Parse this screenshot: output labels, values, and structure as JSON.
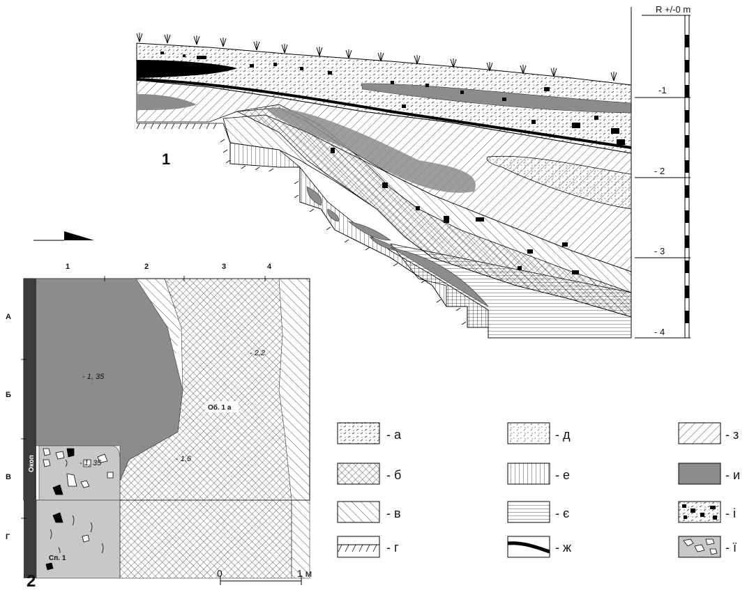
{
  "figure": {
    "section_number": "1",
    "plan_number": "2",
    "elevation_label": "R +/-0 m",
    "depth_ticks": [
      "-1",
      "- 2",
      "- 3",
      "- 4"
    ],
    "grid_columns": [
      "1",
      "2",
      "3",
      "4"
    ],
    "grid_rows": [
      "А",
      "Б",
      "В",
      "Г"
    ],
    "trench_label": "Окоп",
    "object_label": "Об. 1 а",
    "cluster_label": "Сп. 1",
    "plan_depths": [
      "- 1, 35",
      "- 2,2",
      "- 1,6",
      "- 1, 35"
    ],
    "scale": {
      "zero": "0",
      "one": "1 м"
    }
  },
  "legend": [
    {
      "key": "a",
      "label": "- а",
      "pattern": "dashes"
    },
    {
      "key": "b",
      "label": "- б",
      "pattern": "crosshatch"
    },
    {
      "key": "v",
      "label": "- в",
      "pattern": "diagonal-back"
    },
    {
      "key": "h",
      "label": "- г",
      "pattern": "ground-hatch"
    },
    {
      "key": "d",
      "label": "- д",
      "pattern": "dots-dashes"
    },
    {
      "key": "e",
      "label": "- е",
      "pattern": "vertical"
    },
    {
      "key": "ye",
      "label": "- є",
      "pattern": "horizontal"
    },
    {
      "key": "zh",
      "label": "- ж",
      "pattern": "black-band"
    },
    {
      "key": "z",
      "label": "- з",
      "pattern": "diagonal-fwd"
    },
    {
      "key": "y",
      "label": "- и",
      "pattern": "grey-fill"
    },
    {
      "key": "i",
      "label": "- і",
      "pattern": "black-stones"
    },
    {
      "key": "yi",
      "label": "- ї",
      "pattern": "white-stones"
    }
  ],
  "colors": {
    "grey": "#8c8c8c",
    "light_grey": "#c8c8c8",
    "dark": "#3b3b3b",
    "black": "#000000"
  }
}
